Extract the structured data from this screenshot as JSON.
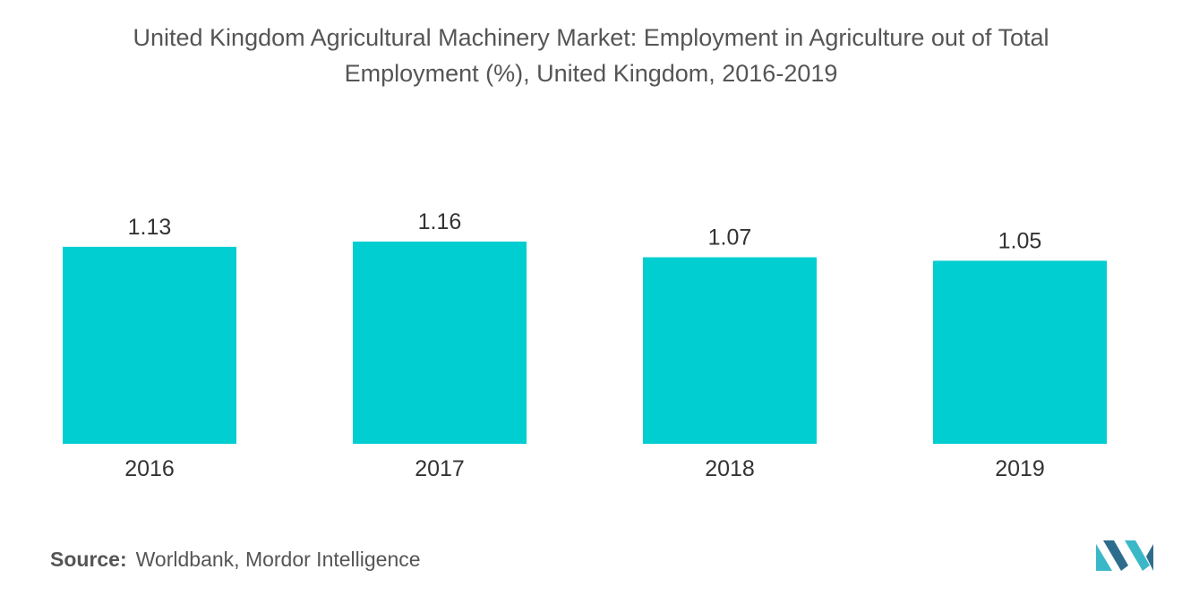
{
  "title": {
    "line1": "United Kingdom Agricultural Machinery Market: Employment in Agriculture out of Total",
    "line2": "Employment (%), United Kingdom, 2016-2019"
  },
  "chart_data": {
    "type": "bar",
    "categories": [
      "2016",
      "2017",
      "2018",
      "2019"
    ],
    "values": [
      1.13,
      1.16,
      1.07,
      1.05
    ],
    "value_labels": [
      "1.13",
      "1.16",
      "1.07",
      "1.05"
    ],
    "title": "United Kingdom Agricultural Machinery Market: Employment in Agriculture out of Total Employment (%), United Kingdom, 2016-2019",
    "xlabel": "",
    "ylabel": "",
    "ylim": [
      0,
      1.16
    ],
    "grid": false,
    "color": "#00CED1"
  },
  "source": {
    "label": "Source:",
    "text": "Worldbank, Mordor Intelligence"
  },
  "logo": {
    "icon": "mordor-intelligence-logo-icon",
    "colors": [
      "#2E6C8E",
      "#3BB8C8"
    ]
  }
}
